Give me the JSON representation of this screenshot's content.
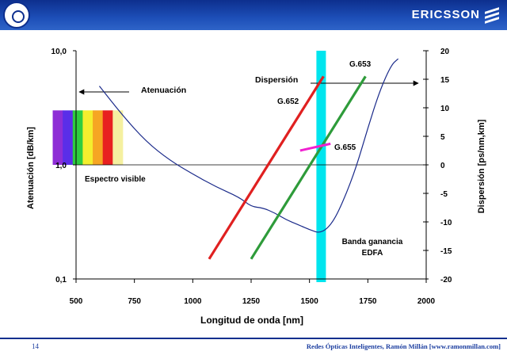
{
  "header": {
    "brand": "ERICSSON"
  },
  "footer": {
    "page_number": "14",
    "credit": "Redes Ópticas Inteligentes, Ramón Millán [www.ramonmillan.com]"
  },
  "chart_data": {
    "type": "line",
    "xlabel": "Longitud de onda [nm]",
    "ylabel_left": "Atenuación [dB/km]",
    "ylabel_right": "Dispersión [ps/nm,km]",
    "x_ticks": [
      500,
      750,
      1000,
      1250,
      1500,
      1750,
      2000
    ],
    "xlim": [
      500,
      2000
    ],
    "left_axis": {
      "scale": "log",
      "ticks": [
        "0,1",
        "1,0",
        "10,0"
      ],
      "ylim": [
        0.1,
        10
      ]
    },
    "right_axis": {
      "ticks": [
        -20,
        -15,
        -10,
        -5,
        0,
        5,
        10,
        15,
        20
      ],
      "ylim": [
        -20,
        20
      ]
    },
    "attenuation_curve": {
      "axis": "left",
      "color": "#1a2a8a",
      "x": [
        600,
        700,
        800,
        900,
        1000,
        1100,
        1200,
        1250,
        1300,
        1350,
        1400,
        1450,
        1500,
        1550,
        1600,
        1650,
        1700,
        1750,
        1800,
        1850,
        1880
      ],
      "y": [
        4.9,
        2.7,
        1.6,
        1.1,
        0.83,
        0.64,
        0.52,
        0.43,
        0.42,
        0.38,
        0.33,
        0.3,
        0.27,
        0.25,
        0.31,
        0.51,
        0.95,
        2.1,
        4.4,
        7.5,
        8.5
      ]
    },
    "series": [
      {
        "name": "G.652",
        "axis": "right",
        "color": "#e02020",
        "x": [
          1070,
          1560
        ],
        "y": [
          -16.5,
          15.5
        ]
      },
      {
        "name": "G.653",
        "axis": "right",
        "color": "#2e9b3a",
        "x": [
          1250,
          1740
        ],
        "y": [
          -16.5,
          15.5
        ]
      },
      {
        "name": "G.655",
        "axis": "right",
        "color": "#f020d0",
        "x": [
          1460,
          1590
        ],
        "y": [
          2.5,
          3.7
        ]
      }
    ],
    "annotations": {
      "atenuacion": "Atenuación",
      "dispersion": "Dispersión",
      "espectro": "Espectro visible",
      "banda_l1": "Banda ganancia",
      "banda_l2": "EDFA"
    },
    "edfa_band": {
      "x_center": 1550,
      "color": "#00e5ee"
    },
    "visible_spectrum": {
      "x_range": [
        400,
        700
      ],
      "colors": [
        "#8e2ed6",
        "#5a2ee8",
        "#2ecc40",
        "#f4ee2e",
        "#f6a623",
        "#e82020",
        "#f5f0a0"
      ]
    }
  }
}
